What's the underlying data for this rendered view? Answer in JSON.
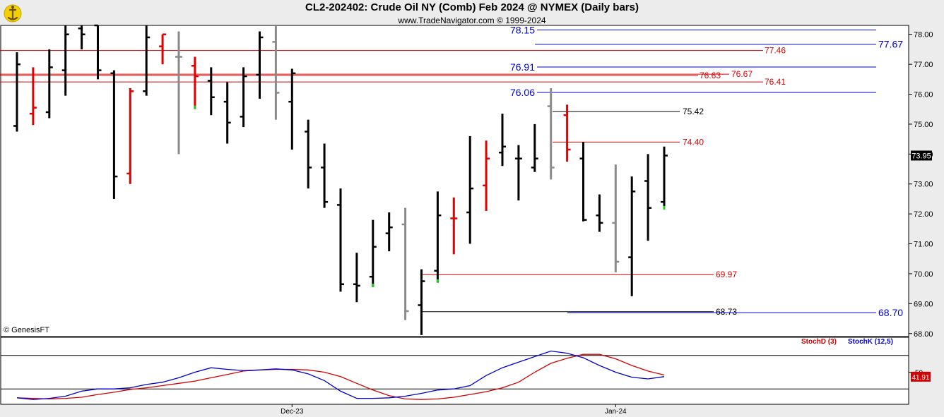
{
  "header": {
    "title": "CL2-202402:  Crude Oil NY (Comb) Feb 2024 @ NYMEX  (Daily bars)",
    "subtitle": "www.TradeNavigator.com © 1999-2024"
  },
  "copyright": "© GenesisFT",
  "colors": {
    "bar_black": "#000000",
    "bar_red": "#e00000",
    "bar_gray": "#8a8a8a",
    "bar_green_tick": "#22cc22",
    "level_red": "#d40000",
    "level_blue": "#0000cc",
    "level_black": "#000000",
    "stoch_d": "#d40000",
    "stoch_k": "#0000cc",
    "last_price_bg": "#000000",
    "stoch_value_bg": "#d40000"
  },
  "chart_data": [
    {
      "type": "ohlc",
      "title": "CL2-202402:  Crude Oil NY (Comb) Feb 2024 @ NYMEX  (Daily bars)",
      "ylim": [
        67.9,
        78.3
      ],
      "y_ticks": [
        "78.00",
        "77.00",
        "76.00",
        "75.00",
        "74.00",
        "73.00",
        "72.00",
        "71.00",
        "70.00",
        "69.00",
        "68.00"
      ],
      "last_price": "73.95",
      "x_labels": [
        {
          "label": "Dec-23",
          "bar": 17
        },
        {
          "label": "Jan-24",
          "bar": 37
        }
      ],
      "bars": [
        {
          "o": 74.94,
          "h": 77.4,
          "l": 74.75,
          "c": 77.0,
          "color": "black"
        },
        {
          "o": 75.35,
          "h": 76.9,
          "l": 74.97,
          "c": 75.55,
          "color": "red"
        },
        {
          "o": 75.4,
          "h": 77.5,
          "l": 75.2,
          "c": 76.9,
          "color": "black"
        },
        {
          "o": 76.8,
          "h": 78.3,
          "l": 75.95,
          "c": 78.0,
          "color": "black"
        },
        {
          "o": 78.2,
          "h": 78.3,
          "l": 77.5,
          "c": 78.0,
          "color": "black"
        },
        {
          "o": 78.3,
          "h": 78.3,
          "l": 76.5,
          "c": 76.8,
          "color": "black"
        },
        {
          "o": 76.7,
          "h": 76.8,
          "l": 72.5,
          "c": 73.25,
          "color": "black"
        },
        {
          "o": 73.35,
          "h": 76.2,
          "l": 73.0,
          "c": 76.1,
          "color": "red"
        },
        {
          "o": 76.1,
          "h": 78.3,
          "l": 75.95,
          "c": 77.9,
          "color": "black"
        },
        {
          "o": 77.6,
          "h": 78.0,
          "l": 77.0,
          "c": 78.0,
          "color": "red"
        },
        {
          "o": 77.25,
          "h": 78.1,
          "l": 74.0,
          "c": 77.25,
          "color": "gray"
        },
        {
          "o": 76.95,
          "h": 77.25,
          "l": 75.5,
          "c": 76.6,
          "color": "red",
          "highlight": "green"
        },
        {
          "o": 76.45,
          "h": 76.9,
          "l": 75.3,
          "c": 75.9,
          "color": "black"
        },
        {
          "o": 75.75,
          "h": 76.4,
          "l": 74.35,
          "c": 75.05,
          "color": "black"
        },
        {
          "o": 75.25,
          "h": 76.9,
          "l": 74.9,
          "c": 76.6,
          "color": "black"
        },
        {
          "o": 76.65,
          "h": 78.1,
          "l": 75.85,
          "c": 77.9,
          "color": "black"
        },
        {
          "o": 77.75,
          "h": 78.3,
          "l": 75.15,
          "c": 76.05,
          "color": "gray"
        },
        {
          "o": 75.75,
          "h": 76.85,
          "l": 74.15,
          "c": 76.7,
          "color": "black"
        },
        {
          "o": 74.75,
          "h": 75.15,
          "l": 72.85,
          "c": 73.55,
          "color": "black"
        },
        {
          "o": 73.55,
          "h": 74.35,
          "l": 72.2,
          "c": 72.4,
          "color": "black"
        },
        {
          "o": 72.3,
          "h": 72.85,
          "l": 69.4,
          "c": 69.65,
          "color": "black"
        },
        {
          "o": 69.65,
          "h": 70.7,
          "l": 69.05,
          "c": 69.6,
          "color": "black"
        },
        {
          "o": 69.9,
          "h": 71.8,
          "l": 69.55,
          "c": 70.9,
          "color": "black",
          "highlight": "green"
        },
        {
          "o": 71.35,
          "h": 72.05,
          "l": 70.75,
          "c": 71.55,
          "color": "black"
        },
        {
          "o": 71.65,
          "h": 72.2,
          "l": 68.45,
          "c": 68.75,
          "color": "gray"
        },
        {
          "o": 68.95,
          "h": 70.15,
          "l": 67.95,
          "c": 69.75,
          "color": "black"
        },
        {
          "o": 70.1,
          "h": 72.75,
          "l": 69.7,
          "c": 71.95,
          "color": "black",
          "highlight": "green"
        },
        {
          "o": 71.85,
          "h": 72.55,
          "l": 70.65,
          "c": 71.85,
          "color": "red"
        },
        {
          "o": 72.05,
          "h": 74.6,
          "l": 71.0,
          "c": 72.85,
          "color": "black"
        },
        {
          "o": 72.95,
          "h": 74.45,
          "l": 72.1,
          "c": 73.85,
          "color": "red"
        },
        {
          "o": 74.05,
          "h": 75.35,
          "l": 73.6,
          "c": 74.25,
          "color": "black"
        },
        {
          "o": 73.85,
          "h": 74.3,
          "l": 72.45,
          "c": 73.85,
          "color": "black"
        },
        {
          "o": 73.55,
          "h": 75.0,
          "l": 73.4,
          "c": 73.85,
          "color": "black"
        },
        {
          "o": 75.6,
          "h": 76.2,
          "l": 73.15,
          "c": 73.55,
          "color": "gray"
        },
        {
          "o": 75.3,
          "h": 75.65,
          "l": 73.75,
          "c": 74.15,
          "color": "red"
        },
        {
          "o": 73.85,
          "h": 74.4,
          "l": 71.75,
          "c": 71.8,
          "color": "black"
        },
        {
          "o": 71.95,
          "h": 72.65,
          "l": 71.4,
          "c": 71.7,
          "color": "black"
        },
        {
          "o": 71.7,
          "h": 73.65,
          "l": 70.05,
          "c": 70.4,
          "color": "gray"
        },
        {
          "o": 70.55,
          "h": 73.25,
          "l": 69.25,
          "c": 72.75,
          "color": "black"
        },
        {
          "o": 73.1,
          "h": 74.0,
          "l": 71.1,
          "c": 72.2,
          "color": "black"
        },
        {
          "o": 72.4,
          "h": 74.25,
          "l": 72.15,
          "c": 73.95,
          "color": "black",
          "highlight": "green"
        }
      ],
      "levels": [
        {
          "value": 78.15,
          "label": "78.15",
          "color": "blue",
          "label_pos": "left",
          "big": true
        },
        {
          "value": 77.67,
          "label": "77.67",
          "color": "blue",
          "label_pos": "right",
          "big": true
        },
        {
          "value": 77.46,
          "label": "77.46",
          "color": "red",
          "label_pos": "mid"
        },
        {
          "value": 76.91,
          "label": "76.91",
          "color": "blue",
          "label_pos": "left",
          "big": true
        },
        {
          "value": 76.67,
          "label": "76.67",
          "color": "red",
          "label_pos": "mid"
        },
        {
          "value": 76.63,
          "label": "76.63",
          "color": "red",
          "label_pos": "mid"
        },
        {
          "value": 76.41,
          "label": "76.41",
          "color": "red",
          "label_pos": "mid"
        },
        {
          "value": 76.06,
          "label": "76.06",
          "color": "blue",
          "label_pos": "left",
          "big": true
        },
        {
          "value": 75.42,
          "label": "75.42",
          "color": "black",
          "label_pos": "mid"
        },
        {
          "value": 74.4,
          "label": "74.40",
          "color": "red",
          "label_pos": "mid"
        },
        {
          "value": 69.97,
          "label": "69.97",
          "color": "red",
          "label_pos": "mid"
        },
        {
          "value": 68.73,
          "label": "68.73",
          "color": "black",
          "label_pos": "mid"
        },
        {
          "value": 68.7,
          "label": "68.70",
          "color": "blue",
          "label_pos": "right",
          "big": true
        }
      ]
    },
    {
      "type": "line",
      "series": [
        {
          "name": "StochD (3)",
          "color": "red",
          "values": [
            4,
            3,
            2,
            3,
            5,
            10,
            14,
            19,
            22,
            26,
            30,
            34,
            40,
            46,
            52,
            54,
            55,
            55,
            54,
            50,
            42,
            30,
            18,
            8,
            2,
            1,
            2,
            5,
            10,
            15,
            22,
            32,
            50,
            66,
            75,
            82,
            82,
            74,
            62,
            52,
            45
          ]
        },
        {
          "name": "StochK (12,5)",
          "color": "blue",
          "values": [
            4,
            1,
            3,
            7,
            16,
            20,
            20,
            22,
            28,
            32,
            40,
            50,
            58,
            55,
            53,
            54,
            56,
            54,
            47,
            35,
            16,
            3,
            3,
            4,
            7,
            12,
            18,
            20,
            26,
            44,
            58,
            68,
            78,
            88,
            84,
            76,
            62,
            50,
            41,
            38,
            42
          ]
        }
      ],
      "last_value": "41.91",
      "y_tick": "50",
      "legend_placement": "top-right"
    }
  ]
}
